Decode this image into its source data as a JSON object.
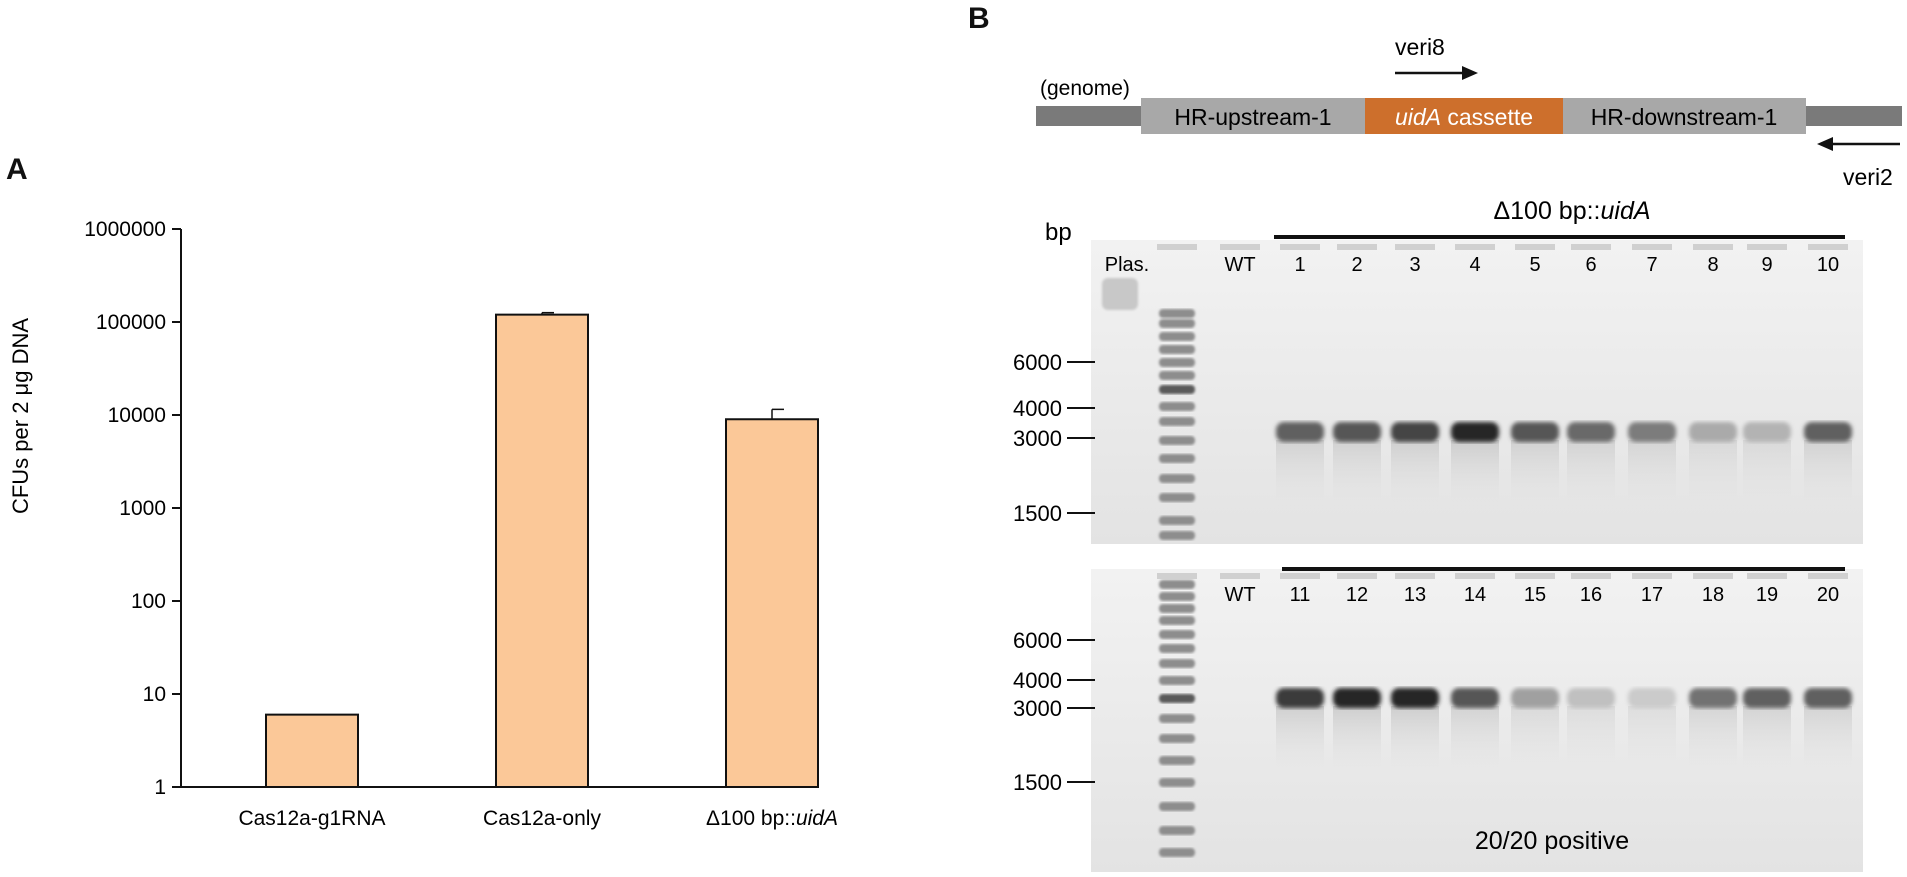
{
  "panel_a": {
    "label": "A",
    "chart_data": {
      "type": "bar",
      "scale": "log",
      "categories": [
        "Cas12a-g1RNA",
        "Cas12a-only",
        "Δ100 bp::"
      ],
      "category_italic_suffix": [
        "",
        "",
        "uidA"
      ],
      "values": [
        6,
        120000,
        9000
      ],
      "error_upper": [
        null,
        126000,
        11500
      ],
      "ylabel": "CFUs per 2 μg DNA",
      "ylim": [
        1,
        1000000
      ],
      "yticks": [
        1,
        10,
        100,
        1000,
        10000,
        100000,
        1000000
      ],
      "ytick_labels": [
        "1",
        "10",
        "100",
        "1000",
        "10000",
        "100000",
        "1000000"
      ],
      "bar_color": "#fbc898",
      "grid": false
    }
  },
  "panel_b": {
    "label": "B",
    "schematic": {
      "genome_label": "(genome)",
      "segments": [
        "HR-upstream-1",
        "uidA",
        " cassette",
        "HR-downstream-1"
      ],
      "primer_forward": "veri8",
      "primer_reverse": "veri2",
      "colors": {
        "genome": "#7a7a7a",
        "hr": "#a8a8a8",
        "cassette": "#cd6f2c"
      }
    },
    "gel": {
      "unit": "bp",
      "title_prefix": "Δ100 bp::",
      "title_italic": "uidA",
      "markers": [
        "6000",
        "4000",
        "3000",
        "1500"
      ],
      "top_lanes": [
        "Plas.",
        "WT",
        "1",
        "2",
        "3",
        "4",
        "5",
        "6",
        "7",
        "8",
        "9",
        "10"
      ],
      "bottom_lanes": [
        "WT",
        "11",
        "12",
        "13",
        "14",
        "15",
        "16",
        "17",
        "18",
        "19",
        "20"
      ],
      "top_band_intensity": [
        0.7,
        0.75,
        0.85,
        1.0,
        0.75,
        0.65,
        0.55,
        0.3,
        0.25,
        0.7
      ],
      "bottom_band_intensity": [
        0.9,
        1.0,
        1.0,
        0.75,
        0.35,
        0.18,
        0.12,
        0.6,
        0.7,
        0.7
      ],
      "summary": "20/20 positive"
    }
  }
}
